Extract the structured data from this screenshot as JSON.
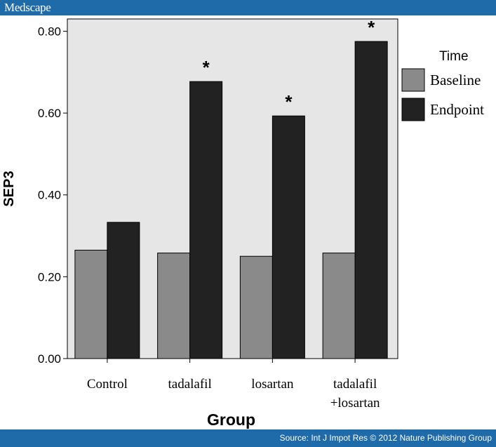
{
  "header": {
    "brand": "Medscape"
  },
  "footer": {
    "source": "Source: Int J Impot Res © 2012 Nature Publishing Group"
  },
  "colors": {
    "plot_background": "#e6e6e6",
    "baseline_fill": "#8a8a8a",
    "endpoint_fill": "#222222",
    "banner": "#1f6aa8"
  },
  "chart_data": {
    "type": "bar",
    "xlabel": "Group",
    "ylabel": "SEP3",
    "categories": [
      "Control",
      "tadalafil",
      "losartan",
      "tadalafil +losartan"
    ],
    "category_lines": [
      [
        "Control"
      ],
      [
        "tadalafil"
      ],
      [
        "losartan"
      ],
      [
        "tadalafil",
        "+losartan"
      ]
    ],
    "series": [
      {
        "name": "Baseline",
        "values": [
          0.265,
          0.258,
          0.25,
          0.258
        ]
      },
      {
        "name": "Endpoint",
        "values": [
          0.333,
          0.677,
          0.593,
          0.775
        ]
      }
    ],
    "annotations": [
      "",
      "*",
      "*",
      "*"
    ],
    "ylim": [
      0,
      0.8
    ],
    "yticks": [
      "0.00",
      "0.20",
      "0.40",
      "0.60",
      "0.80"
    ],
    "legend": {
      "title": "Time",
      "position": "right"
    },
    "grid": false
  }
}
